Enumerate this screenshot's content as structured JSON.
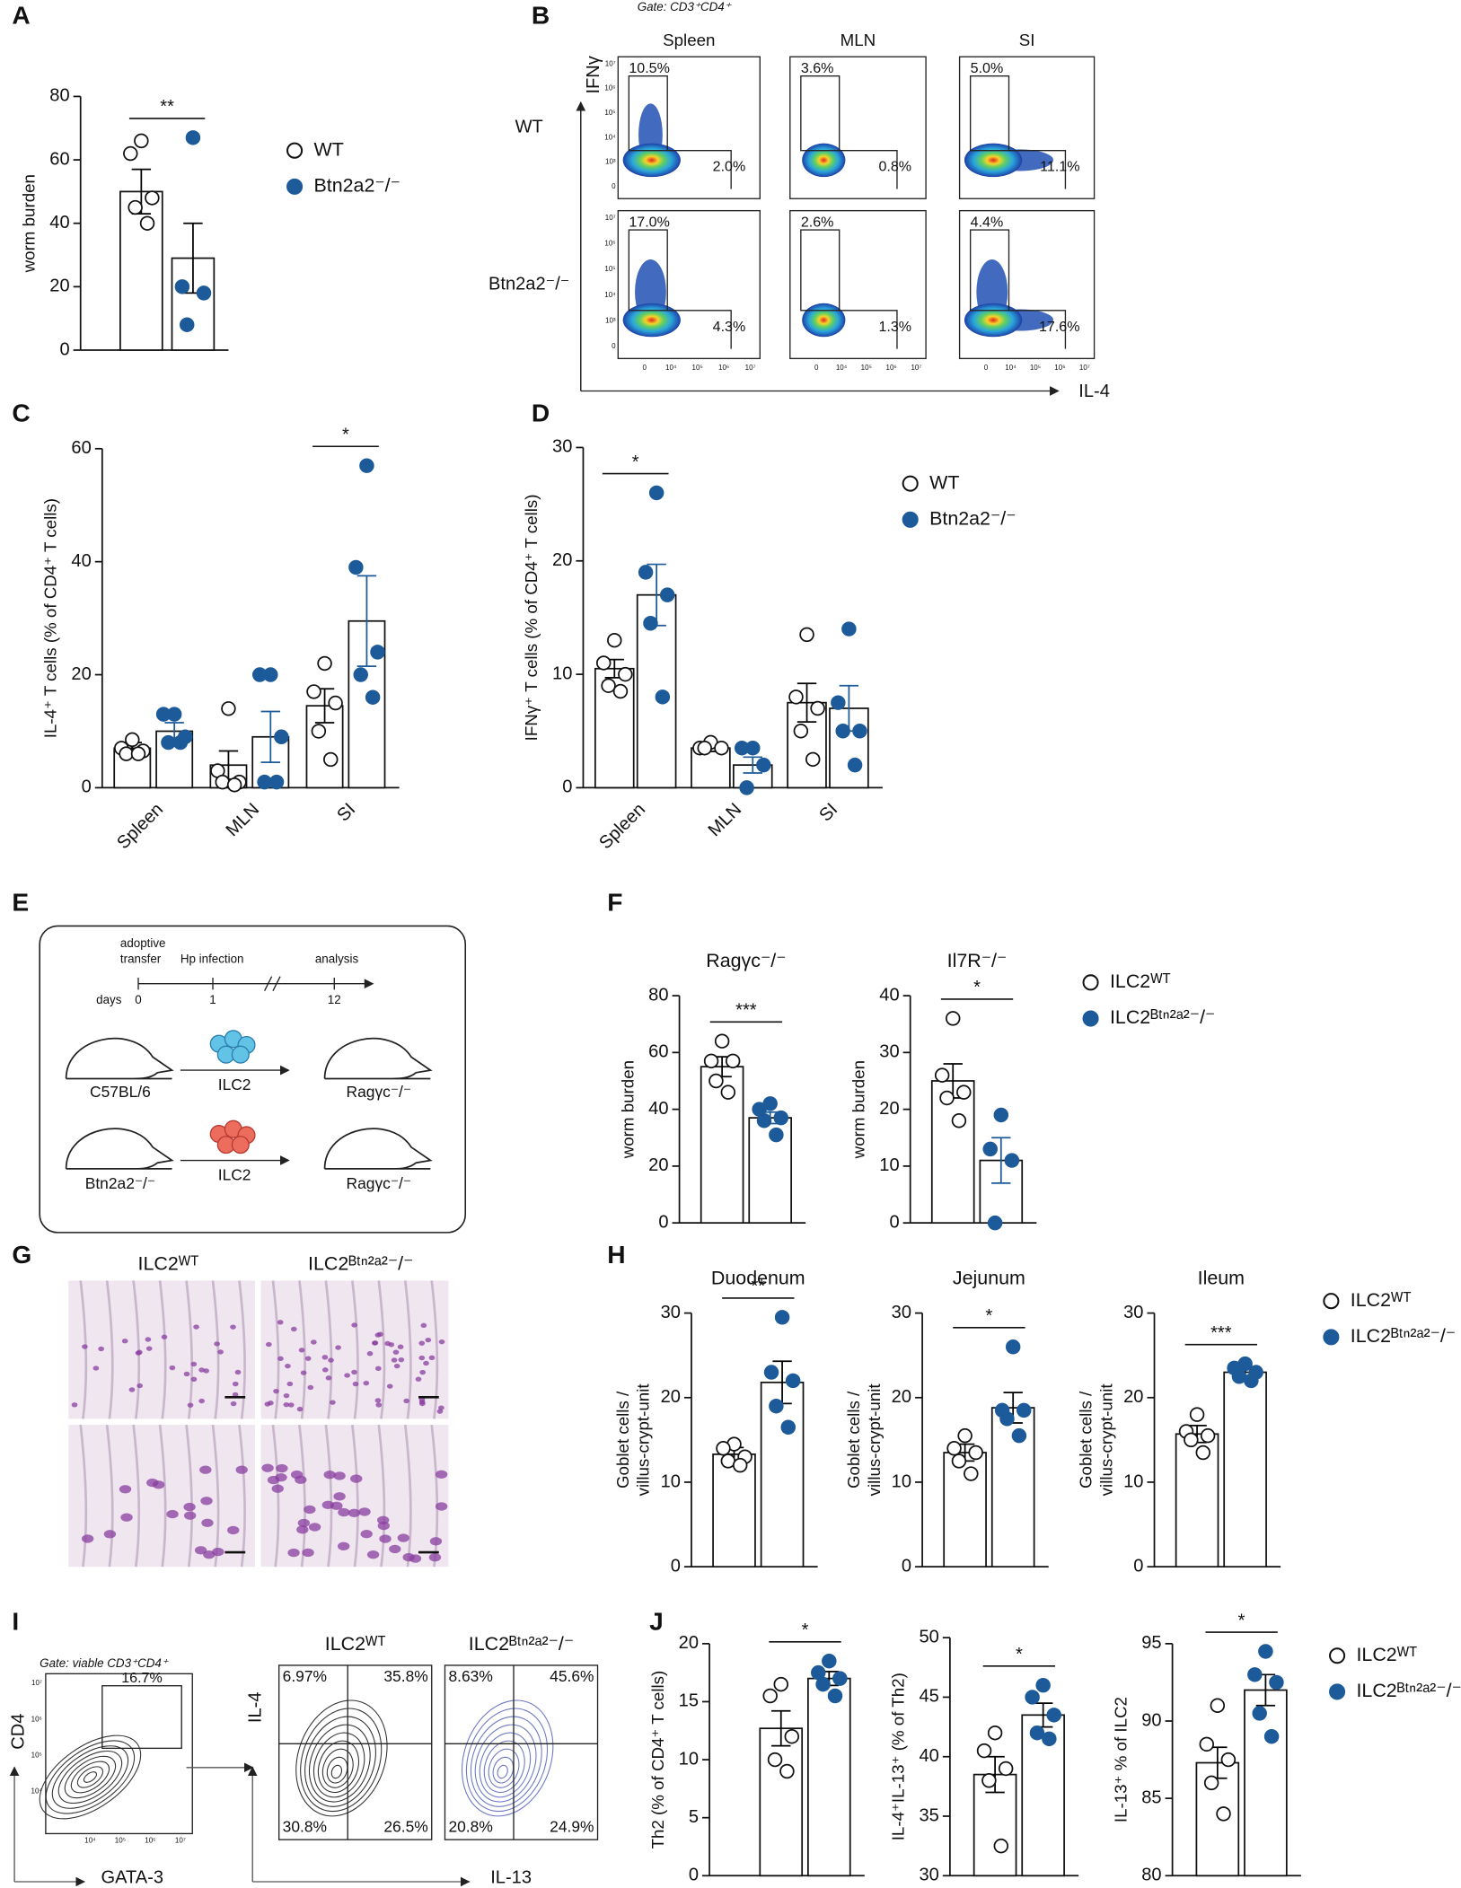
{
  "panels": [
    "A",
    "B",
    "C",
    "D",
    "E",
    "F",
    "G",
    "H",
    "I",
    "J"
  ],
  "chart_data": [
    {
      "type": "bar",
      "ylabel": "worm burden",
      "categories": [
        null
      ],
      "ylim": [
        0,
        80
      ],
      "yticks": [
        0,
        20,
        40,
        60,
        80
      ],
      "significance": [
        "**"
      ],
      "legend": true,
      "series": [
        {
          "name": "WT",
          "color": "#ffffff",
          "error_color": "#000000",
          "values": [
            50
          ],
          "errors": [
            7
          ],
          "points": [
            [
              66,
              62,
              48,
              45,
              40
            ]
          ]
        },
        {
          "name": "Btn2a2⁻/⁻",
          "color": "#1c5a99",
          "error_color": "#000000",
          "values": [
            29
          ],
          "errors": [
            11
          ],
          "points": [
            [
              67,
              20,
              18,
              8
            ]
          ]
        }
      ]
    },
    {
      "type": "bar",
      "ylabel": "IL-4⁺ T cells (% of CD4⁺ T cells)",
      "categories": [
        "Spleen",
        "MLN",
        "SI"
      ],
      "ylim": [
        0,
        60
      ],
      "yticks": [
        0,
        20,
        40,
        60
      ],
      "significance": [
        null,
        null,
        "*"
      ],
      "series": [
        {
          "name": "WT",
          "color": "#ffffff",
          "error_color": "#000000",
          "values": [
            7,
            4,
            14.5
          ],
          "errors": [
            1,
            2.5,
            3
          ],
          "points": [
            [
              8.5,
              7,
              6.5,
              6,
              6
            ],
            [
              14,
              3,
              1,
              1,
              0.5
            ],
            [
              22,
              17,
              15,
              10,
              5
            ]
          ]
        },
        {
          "name": "Btn2a2⁻/⁻",
          "color": "#1c5a99",
          "error_color": "#1c5a99",
          "values": [
            10,
            9,
            29.5
          ],
          "errors": [
            1.5,
            4.5,
            8
          ],
          "points": [
            [
              13,
              13,
              9,
              8,
              8
            ],
            [
              20,
              20,
              9,
              1,
              1
            ],
            [
              57,
              39,
              24,
              20,
              16
            ]
          ]
        }
      ]
    },
    {
      "type": "bar",
      "ylabel": "IFNγ⁺ T cells (% of CD4⁺ T cells)",
      "categories": [
        "Spleen",
        "MLN",
        "SI"
      ],
      "ylim": [
        0,
        30
      ],
      "yticks": [
        0,
        10,
        20,
        30
      ],
      "significance": [
        "*",
        null,
        null
      ],
      "legend": true,
      "series": [
        {
          "name": "WT",
          "color": "#ffffff",
          "error_color": "#000000",
          "values": [
            10.5,
            3.5,
            7.5
          ],
          "errors": [
            0.8,
            0.3,
            1.7
          ],
          "points": [
            [
              13,
              11,
              10,
              9,
              8.5
            ],
            [
              4,
              3.5,
              3.5,
              3.5
            ],
            [
              13.5,
              8,
              7,
              5,
              2.5
            ]
          ]
        },
        {
          "name": "Btn2a2⁻/⁻",
          "color": "#1c5a99",
          "error_color": "#1c5a99",
          "values": [
            17,
            2,
            7
          ],
          "errors": [
            2.7,
            0.7,
            2
          ],
          "points": [
            [
              26,
              19,
              17,
              14.5,
              8
            ],
            [
              3.5,
              3.5,
              2,
              0
            ],
            [
              14,
              7.5,
              5,
              5,
              2
            ]
          ]
        }
      ]
    },
    {
      "type": "bar",
      "title": "Ragγc⁻/⁻",
      "ylabel": "worm burden",
      "categories": [
        null
      ],
      "ylim": [
        0,
        80
      ],
      "yticks": [
        0,
        20,
        40,
        60,
        80
      ],
      "significance": [
        "***"
      ],
      "series": [
        {
          "name": "ILC2ᵂᵀ",
          "color": "#ffffff",
          "error_color": "#000000",
          "values": [
            55
          ],
          "errors": [
            3.5
          ],
          "points": [
            [
              64,
              57,
              57,
              50,
              46
            ]
          ]
        },
        {
          "name": "ILC2ᴮᵗⁿ²ᵃ²⁻/⁻",
          "color": "#1c5a99",
          "error_color": "#1c5a99",
          "values": [
            37
          ],
          "errors": [
            2
          ],
          "points": [
            [
              42,
              40,
              37,
              36,
              31
            ]
          ]
        }
      ]
    },
    {
      "type": "bar",
      "title": "Il7R⁻/⁻",
      "ylabel": "worm burden",
      "categories": [
        null
      ],
      "ylim": [
        0,
        40
      ],
      "yticks": [
        0,
        10,
        20,
        30,
        40
      ],
      "significance": [
        "*"
      ],
      "legend": true,
      "series": [
        {
          "name": "ILC2ᵂᵀ",
          "color": "#ffffff",
          "error_color": "#000000",
          "values": [
            25
          ],
          "errors": [
            3
          ],
          "points": [
            [
              36,
              26,
              23,
              22,
              18
            ]
          ]
        },
        {
          "name": "ILC2ᴮᵗⁿ²ᵃ²⁻/⁻",
          "color": "#1c5a99",
          "error_color": "#1c5a99",
          "values": [
            11
          ],
          "errors": [
            4
          ],
          "points": [
            [
              19,
              13,
              11,
              0
            ]
          ]
        }
      ]
    },
    {
      "type": "bar",
      "title": "Duodenum",
      "ylabel": [
        "Goblet cells /",
        "villus-crypt-unit"
      ],
      "categories": [
        null
      ],
      "ylim": [
        0,
        30
      ],
      "yticks": [
        0,
        10,
        20,
        30
      ],
      "significance": [
        "**"
      ],
      "series": [
        {
          "name": "ILC2ᵂᵀ",
          "color": "#ffffff",
          "error_color": "#000000",
          "values": [
            13.3
          ],
          "errors": [
            0.8
          ],
          "points": [
            [
              14.5,
              14,
              13,
              12.5,
              12
            ]
          ]
        },
        {
          "name": "ILC2ᴮᵗⁿ²ᵃ²⁻/⁻",
          "color": "#1c5a99",
          "error_color": "#000000",
          "values": [
            21.8
          ],
          "errors": [
            2.5
          ],
          "points": [
            [
              29.5,
              23,
              22,
              19,
              16.5
            ]
          ]
        }
      ]
    },
    {
      "type": "bar",
      "title": "Jejunum",
      "ylabel": [
        "Goblet cells /",
        "villus-crypt-unit"
      ],
      "categories": [
        null
      ],
      "ylim": [
        0,
        30
      ],
      "yticks": [
        0,
        10,
        20,
        30
      ],
      "significance": [
        "*"
      ],
      "series": [
        {
          "name": "ILC2ᵂᵀ",
          "color": "#ffffff",
          "error_color": "#000000",
          "values": [
            13.5
          ],
          "errors": [
            1
          ],
          "points": [
            [
              15.5,
              14,
              13.5,
              12.5,
              11
            ]
          ]
        },
        {
          "name": "ILC2ᴮᵗⁿ²ᵃ²⁻/⁻",
          "color": "#1c5a99",
          "error_color": "#000000",
          "values": [
            18.8
          ],
          "errors": [
            1.8
          ],
          "points": [
            [
              26,
              18.5,
              18.5,
              17.5,
              15.5
            ]
          ]
        }
      ]
    },
    {
      "type": "bar",
      "title": "Ileum",
      "ylabel": [
        "Goblet cells /",
        "villus-crypt-unit"
      ],
      "categories": [
        null
      ],
      "ylim": [
        0,
        30
      ],
      "yticks": [
        0,
        10,
        20,
        30
      ],
      "significance": [
        "***"
      ],
      "legend": true,
      "series": [
        {
          "name": "ILC2ᵂᵀ",
          "color": "#ffffff",
          "error_color": "#000000",
          "values": [
            15.7
          ],
          "errors": [
            1
          ],
          "points": [
            [
              18,
              16,
              15.5,
              15,
              13.5
            ]
          ]
        },
        {
          "name": "ILC2ᴮᵗⁿ²ᵃ²⁻/⁻",
          "color": "#1c5a99",
          "error_color": "#000000",
          "values": [
            23
          ],
          "errors": [
            0.4
          ],
          "points": [
            [
              24,
              23.5,
              23,
              22.5,
              22
            ]
          ]
        }
      ]
    },
    {
      "type": "bar",
      "ylabel": "Th2 (% of CD4⁺ T cells)",
      "categories": [
        null
      ],
      "ylim": [
        0,
        20
      ],
      "yticks": [
        0,
        5,
        10,
        15,
        20
      ],
      "significance": [
        "*"
      ],
      "series": [
        {
          "name": "ILC2ᵂᵀ",
          "color": "#ffffff",
          "error_color": "#000000",
          "values": [
            12.7
          ],
          "errors": [
            1.5
          ],
          "points": [
            [
              16.5,
              15.5,
              12,
              10,
              9
            ]
          ]
        },
        {
          "name": "ILC2ᴮᵗⁿ²ᵃ²⁻/⁻",
          "color": "#1c5a99",
          "error_color": "#000000",
          "values": [
            17
          ],
          "errors": [
            0.6
          ],
          "points": [
            [
              18.5,
              17.5,
              17,
              16.5,
              15.5
            ]
          ]
        }
      ]
    },
    {
      "type": "bar",
      "ylabel": "IL-4⁺IL-13⁺ (% of Th2)",
      "categories": [
        null
      ],
      "ylim": [
        30,
        50
      ],
      "yticks": [
        30,
        35,
        40,
        45,
        50
      ],
      "significance": [
        "*"
      ],
      "series": [
        {
          "name": "ILC2ᵂᵀ",
          "color": "#ffffff",
          "error_color": "#000000",
          "values": [
            38.5
          ],
          "errors": [
            1.5
          ],
          "points": [
            [
              42,
              40.5,
              39,
              38,
              32.5
            ]
          ]
        },
        {
          "name": "ILC2ᴮᵗⁿ²ᵃ²⁻/⁻",
          "color": "#1c5a99",
          "error_color": "#000000",
          "values": [
            43.5
          ],
          "errors": [
            1
          ],
          "points": [
            [
              46,
              45,
              43.5,
              42,
              41.5
            ]
          ]
        }
      ]
    },
    {
      "type": "bar",
      "ylabel": "IL-13⁺ % of ILC2",
      "categories": [
        null
      ],
      "ylim": [
        80,
        95
      ],
      "yticks": [
        80,
        85,
        90,
        95
      ],
      "significance": [
        "*"
      ],
      "legend": true,
      "series": [
        {
          "name": "ILC2ᵂᵀ",
          "color": "#ffffff",
          "error_color": "#000000",
          "values": [
            87.3
          ],
          "errors": [
            1
          ],
          "points": [
            [
              91,
              88.5,
              87.5,
              86,
              84
            ]
          ]
        },
        {
          "name": "ILC2ᴮᵗⁿ²ᵃ²⁻/⁻",
          "color": "#1c5a99",
          "error_color": "#000000",
          "values": [
            92
          ],
          "errors": [
            1
          ],
          "points": [
            [
              94.5,
              93,
              92.5,
              90.5,
              89
            ]
          ]
        }
      ]
    }
  ],
  "flow_b": {
    "gate": "Gate: CD3⁺CD4⁺",
    "columns": [
      "Spleen",
      "MLN",
      "SI"
    ],
    "rows": [
      "WT",
      "Btn2a2⁻/⁻"
    ],
    "y_axis": "IFNγ",
    "x_axis": "IL-4",
    "xticks": [
      "0",
      "10⁴",
      "10⁵",
      "10⁶",
      "10⁷"
    ],
    "yticks": [
      "10⁷",
      "10⁶",
      "10⁵",
      "10⁴",
      "10³",
      "0"
    ],
    "gates": [
      [
        [
          "10.5%",
          "2.0%"
        ],
        [
          "3.6%",
          "0.8%"
        ],
        [
          "5.0%",
          "11.1%"
        ]
      ],
      [
        [
          "17.0%",
          "4.3%"
        ],
        [
          "2.6%",
          "1.3%"
        ],
        [
          "4.4%",
          "17.6%"
        ]
      ]
    ]
  },
  "schematic_e": {
    "transfer_label": [
      "adoptive",
      "transfer"
    ],
    "infection_label": "Hp infection",
    "analysis_label": "analysis",
    "days_label": "days",
    "days": [
      0,
      1,
      12
    ],
    "rows": [
      {
        "donor": "C57BL/6",
        "cells": "ILC2",
        "recipient": "Ragγc⁻/⁻"
      },
      {
        "donor": "Btn2a2⁻/⁻",
        "cells": "ILC2",
        "recipient": "Ragγc⁻/⁻"
      }
    ]
  },
  "histology_g": {
    "titles": [
      "ILC2ᵂᵀ",
      "ILC2ᴮᵗⁿ²ᵃ²⁻/⁻"
    ]
  },
  "flow_i": {
    "gate": "Gate: viable CD3⁺CD4⁺",
    "y_axis": "CD4",
    "x_axis": "GATA-3",
    "gate_label": "16.7%",
    "quad_y_axis": "IL-4",
    "quad_x_axis": "IL-13",
    "titles": [
      "ILC2ᵂᵀ",
      "ILC2ᴮᵗⁿ²ᵃ²⁻/⁻"
    ],
    "quadrants": [
      [
        "6.97%",
        "35.8%",
        "30.8%",
        "26.5%"
      ],
      [
        "8.63%",
        "45.6%",
        "20.8%",
        "24.9%"
      ]
    ],
    "xticks": [
      "10⁴",
      "10⁵",
      "10⁶",
      "10⁷"
    ],
    "yticks": [
      "10⁷",
      "10⁶",
      "10⁵",
      "10⁴"
    ]
  }
}
